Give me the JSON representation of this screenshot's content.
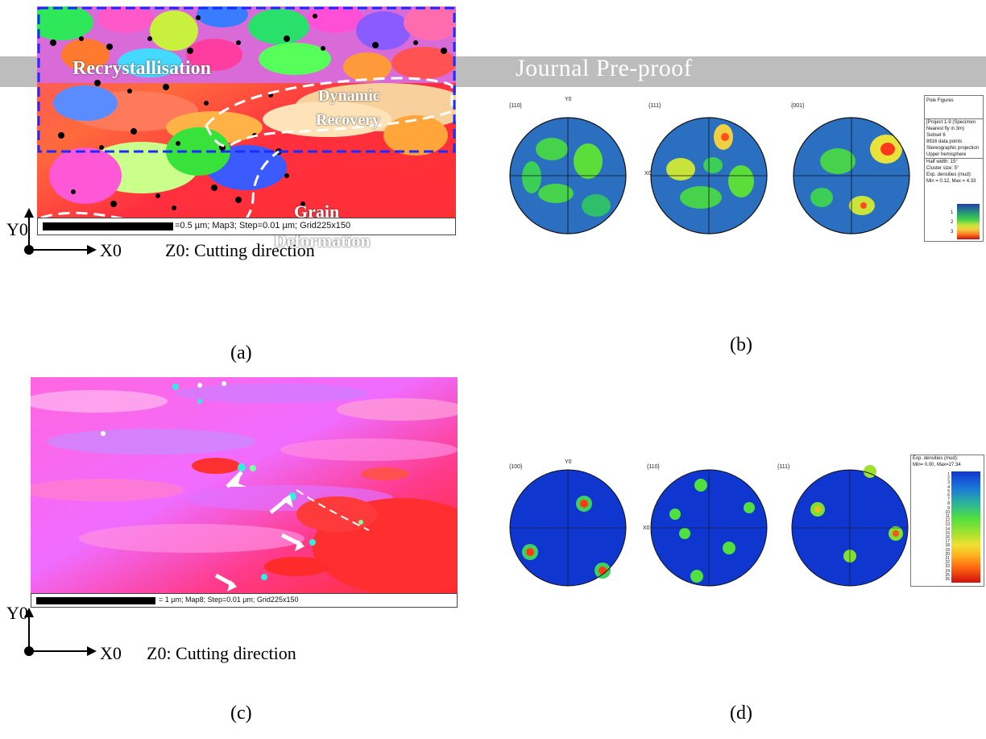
{
  "watermark": "Journal Pre-proof",
  "panel_a": {
    "region_recrystallisation": "Recrystallisation",
    "region_dynamic_1": "Dynamic",
    "region_dynamic_2": "Recovery",
    "region_grain_1": "Grain",
    "region_grain_2": "Deformation",
    "scalebar_text": "=0.5 µm; Map3; Step=0.01 µm; Grid225x150",
    "axis_y": "Y0",
    "axis_x": "X0",
    "direction": "Z0: Cutting direction",
    "caption": "(a)"
  },
  "panel_b": {
    "pole_labels": [
      "{110}",
      "{111}",
      "{001}"
    ],
    "axis_y": "Y0",
    "axis_x": "X0",
    "legend_title": "Pole Figures",
    "legend_lines_1": [
      "[Project 1-9 (Specimen",
      "Nearest fly in 3m)",
      "Subset 6",
      "8916 data points",
      "Stereographic projection",
      "Upper hemisphere"
    ],
    "legend_lines_2": [
      "Half width: 15°",
      "Cluster size: 5°",
      "Exp. densities (mud):",
      "Min = 0.12, Max = 4.33"
    ],
    "legend_scale": [
      "1",
      "2",
      "3"
    ],
    "caption": "(b)"
  },
  "panel_c": {
    "scalebar_text": "= 1 µm; Map8; Step=0.01 µm; Grid225x150",
    "axis_y": "Y0",
    "axis_x": "X0",
    "direction": "Z0: Cutting direction",
    "caption": "(c)"
  },
  "panel_d": {
    "pole_labels": [
      "{100}",
      "{110}",
      "{111}"
    ],
    "axis_y": "Y0",
    "axis_x": "X0",
    "legend_title": "Exp. densities (mud):",
    "legend_minmax": "Min= 0.00, Max=27.34",
    "legend_scale": [
      "1",
      "2",
      "3",
      "4",
      "5",
      "6",
      "7",
      "8",
      "9",
      "10",
      "11",
      "12",
      "13",
      "14",
      "15",
      "16",
      "17",
      "18",
      "19",
      "20",
      "21",
      "22",
      "23",
      "24",
      "25",
      "26"
    ],
    "caption": "(d)"
  }
}
